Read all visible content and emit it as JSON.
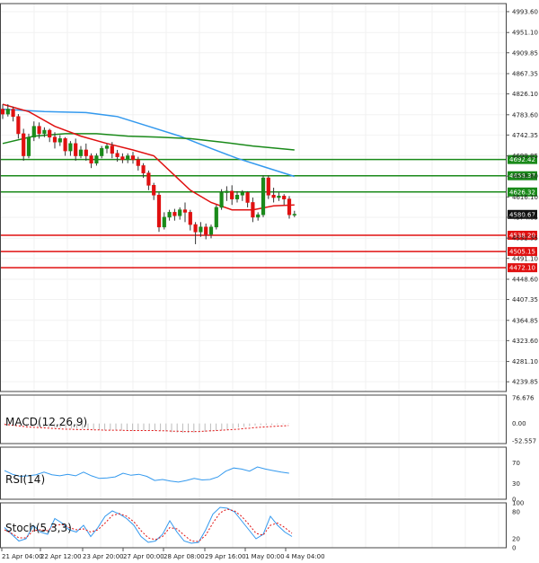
{
  "chart_data": [
    {
      "type": "candlestick",
      "ylim": [
        4220,
        5010
      ],
      "y_ticks": [
        "4993.60",
        "4951.10",
        "4909.85",
        "4867.35",
        "4826.10",
        "4783.60",
        "4742.35",
        "4699.85",
        "4658.60",
        "4616.10",
        "4574.85",
        "4532.35",
        "4491.10",
        "4448.60",
        "4407.35",
        "4364.85",
        "4323.60",
        "4281.10",
        "4239.85"
      ],
      "y_tick_values": [
        4993.6,
        4951.1,
        4909.85,
        4867.35,
        4826.1,
        4783.6,
        4742.35,
        4699.85,
        4658.6,
        4616.1,
        4574.85,
        4532.35,
        4491.1,
        4448.6,
        4407.35,
        4364.85,
        4323.6,
        4281.1,
        4239.85
      ],
      "x_labels": [
        "21 Apr 04:00",
        "22 Apr 12:00",
        "23 Apr 20:00",
        "27 Apr 00:00",
        "28 Apr 08:00",
        "29 Apr 16:00",
        "1 May 00:00",
        "4 May 04:00"
      ],
      "current_price": {
        "label": "4580.67",
        "value": 4580.67
      },
      "levels": [
        {
          "label": "4692.42",
          "value": 4692.42,
          "color": "#1a8a1a"
        },
        {
          "label": "4659.37",
          "value": 4659.37,
          "color": "#1a8a1a"
        },
        {
          "label": "4626.32",
          "value": 4626.32,
          "color": "#1a8a1a"
        },
        {
          "label": "4538.20",
          "value": 4538.2,
          "color": "#e01010"
        },
        {
          "label": "4505.15",
          "value": 4505.15,
          "color": "#e01010"
        },
        {
          "label": "4472.10",
          "value": 4472.1,
          "color": "#e01010"
        }
      ],
      "candles": [
        {
          "o": 4795,
          "h": 4805,
          "c": 4785,
          "l": 4775
        },
        {
          "o": 4785,
          "h": 4805,
          "c": 4795,
          "l": 4780
        },
        {
          "o": 4795,
          "h": 4800,
          "c": 4780,
          "l": 4770
        },
        {
          "o": 4780,
          "h": 4785,
          "c": 4745,
          "l": 4735
        },
        {
          "o": 4745,
          "h": 4755,
          "c": 4700,
          "l": 4690
        },
        {
          "o": 4700,
          "h": 4745,
          "c": 4738,
          "l": 4695
        },
        {
          "o": 4738,
          "h": 4770,
          "c": 4760,
          "l": 4730
        },
        {
          "o": 4760,
          "h": 4768,
          "c": 4745,
          "l": 4735
        },
        {
          "o": 4745,
          "h": 4758,
          "c": 4752,
          "l": 4738
        },
        {
          "o": 4752,
          "h": 4755,
          "c": 4738,
          "l": 4728
        },
        {
          "o": 4738,
          "h": 4748,
          "c": 4728,
          "l": 4715
        },
        {
          "o": 4728,
          "h": 4742,
          "c": 4735,
          "l": 4720
        },
        {
          "o": 4735,
          "h": 4738,
          "c": 4710,
          "l": 4700
        },
        {
          "o": 4710,
          "h": 4730,
          "c": 4725,
          "l": 4700
        },
        {
          "o": 4725,
          "h": 4735,
          "c": 4700,
          "l": 4690
        },
        {
          "o": 4700,
          "h": 4720,
          "c": 4712,
          "l": 4695
        },
        {
          "o": 4712,
          "h": 4725,
          "c": 4700,
          "l": 4690
        },
        {
          "o": 4700,
          "h": 4705,
          "c": 4685,
          "l": 4675
        },
        {
          "o": 4685,
          "h": 4705,
          "c": 4700,
          "l": 4680
        },
        {
          "o": 4700,
          "h": 4720,
          "c": 4715,
          "l": 4695
        },
        {
          "o": 4715,
          "h": 4725,
          "c": 4720,
          "l": 4705
        },
        {
          "o": 4720,
          "h": 4728,
          "c": 4705,
          "l": 4695
        },
        {
          "o": 4705,
          "h": 4712,
          "c": 4698,
          "l": 4688
        },
        {
          "o": 4698,
          "h": 4705,
          "c": 4692,
          "l": 4685
        },
        {
          "o": 4692,
          "h": 4705,
          "c": 4700,
          "l": 4685
        },
        {
          "o": 4700,
          "h": 4708,
          "c": 4692,
          "l": 4684
        },
        {
          "o": 4692,
          "h": 4698,
          "c": 4680,
          "l": 4670
        },
        {
          "o": 4680,
          "h": 4685,
          "c": 4665,
          "l": 4655
        },
        {
          "o": 4665,
          "h": 4670,
          "c": 4640,
          "l": 4630
        },
        {
          "o": 4640,
          "h": 4645,
          "c": 4620,
          "l": 4610
        },
        {
          "o": 4620,
          "h": 4625,
          "c": 4555,
          "l": 4545
        },
        {
          "o": 4555,
          "h": 4585,
          "c": 4575,
          "l": 4550
        },
        {
          "o": 4575,
          "h": 4590,
          "c": 4585,
          "l": 4568
        },
        {
          "o": 4585,
          "h": 4592,
          "c": 4578,
          "l": 4568
        },
        {
          "o": 4578,
          "h": 4595,
          "c": 4590,
          "l": 4570
        },
        {
          "o": 4590,
          "h": 4605,
          "c": 4585,
          "l": 4565
        },
        {
          "o": 4585,
          "h": 4590,
          "c": 4560,
          "l": 4548
        },
        {
          "o": 4560,
          "h": 4565,
          "c": 4545,
          "l": 4520
        },
        {
          "o": 4545,
          "h": 4565,
          "c": 4555,
          "l": 4535
        },
        {
          "o": 4555,
          "h": 4562,
          "c": 4540,
          "l": 4530
        },
        {
          "o": 4540,
          "h": 4560,
          "c": 4555,
          "l": 4532
        },
        {
          "o": 4555,
          "h": 4600,
          "c": 4595,
          "l": 4550
        },
        {
          "o": 4595,
          "h": 4632,
          "c": 4625,
          "l": 4590
        },
        {
          "o": 4625,
          "h": 4638,
          "c": 4628,
          "l": 4608
        },
        {
          "o": 4628,
          "h": 4640,
          "c": 4612,
          "l": 4600
        },
        {
          "o": 4612,
          "h": 4628,
          "c": 4620,
          "l": 4605
        },
        {
          "o": 4620,
          "h": 4630,
          "c": 4625,
          "l": 4608
        },
        {
          "o": 4625,
          "h": 4628,
          "c": 4605,
          "l": 4595
        },
        {
          "o": 4605,
          "h": 4615,
          "c": 4575,
          "l": 4565
        },
        {
          "o": 4575,
          "h": 4585,
          "c": 4580,
          "l": 4568
        },
        {
          "o": 4580,
          "h": 4660,
          "c": 4655,
          "l": 4575
        },
        {
          "o": 4655,
          "h": 4660,
          "c": 4620,
          "l": 4612
        },
        {
          "o": 4620,
          "h": 4635,
          "c": 4615,
          "l": 4605
        },
        {
          "o": 4615,
          "h": 4625,
          "c": 4618,
          "l": 4608
        },
        {
          "o": 4618,
          "h": 4622,
          "c": 4612,
          "l": 4600
        },
        {
          "o": 4612,
          "h": 4618,
          "c": 4580,
          "l": 4572
        },
        {
          "o": 4580,
          "h": 4588,
          "c": 4581,
          "l": 4575
        }
      ],
      "series": [
        {
          "color": "#3399ee",
          "values": [
            [
              0,
              4795
            ],
            [
              8,
              4790
            ],
            [
              16,
              4788
            ],
            [
              22,
              4780
            ],
            [
              28,
              4760
            ],
            [
              34,
              4740
            ],
            [
              40,
              4715
            ],
            [
              45,
              4695
            ],
            [
              50,
              4678
            ],
            [
              56,
              4658
            ]
          ]
        },
        {
          "color": "#1a8a1a",
          "values": [
            [
              0,
              4725
            ],
            [
              6,
              4740
            ],
            [
              12,
              4745
            ],
            [
              18,
              4745
            ],
            [
              24,
              4740
            ],
            [
              30,
              4738
            ],
            [
              36,
              4735
            ],
            [
              42,
              4728
            ],
            [
              48,
              4720
            ],
            [
              56,
              4712
            ]
          ]
        },
        {
          "color": "#e01010",
          "values": [
            [
              0,
              4805
            ],
            [
              5,
              4790
            ],
            [
              10,
              4760
            ],
            [
              15,
              4740
            ],
            [
              20,
              4725
            ],
            [
              25,
              4712
            ],
            [
              29,
              4700
            ],
            [
              32,
              4670
            ],
            [
              36,
              4630
            ],
            [
              40,
              4605
            ],
            [
              44,
              4590
            ],
            [
              48,
              4590
            ],
            [
              52,
              4598
            ],
            [
              56,
              4600
            ]
          ]
        }
      ]
    },
    {
      "type": "bar",
      "title": "MACD(12,26,9)",
      "ylim": [
        -60,
        85
      ],
      "y_ticks": [
        "76.676",
        "0.00",
        "-52.557"
      ],
      "y_tick_values": [
        76.676,
        0,
        -52.557
      ],
      "series": [
        {
          "values": [
            -2,
            -3,
            -4,
            -6,
            -8,
            -9,
            -9,
            -10,
            -11,
            -12,
            -13,
            -14,
            -15,
            -16,
            -16,
            -17,
            -18,
            -19,
            -20,
            -20,
            -20,
            -21,
            -22,
            -22,
            -21,
            -20,
            -20,
            -21,
            -22,
            -24,
            -26,
            -27,
            -28,
            -28,
            -27,
            -26,
            -25,
            -24,
            -22,
            -20,
            -18,
            -15,
            -12,
            -10,
            -8,
            -6,
            -5,
            -4,
            -4,
            -3,
            -2,
            -1
          ]
        },
        {
          "color": "#e01010",
          "values": [
            -3,
            -4,
            -6,
            -8,
            -10,
            -11,
            -12,
            -13,
            -14,
            -15,
            -16,
            -17,
            -17,
            -18,
            -18,
            -18,
            -19,
            -19,
            -20,
            -20,
            -20,
            -20,
            -21,
            -21,
            -21,
            -21,
            -21,
            -21,
            -22,
            -22,
            -23,
            -23,
            -24,
            -24,
            -24,
            -24,
            -23,
            -22,
            -21,
            -20,
            -19,
            -18,
            -17,
            -15,
            -14,
            -12,
            -11,
            -10,
            -9,
            -8,
            -7,
            -6
          ]
        }
      ]
    },
    {
      "type": "line",
      "title": "RSI(14)",
      "ylim": [
        0,
        100
      ],
      "y_ticks": [
        "70",
        "30",
        "0"
      ],
      "y_tick_values": [
        70,
        30,
        0
      ],
      "series": [
        {
          "color": "#3399ee",
          "values": [
            55,
            48,
            44,
            45,
            47,
            52,
            47,
            45,
            48,
            45,
            52,
            45,
            40,
            41,
            43,
            50,
            46,
            48,
            44,
            36,
            38,
            35,
            33,
            36,
            40,
            37,
            38,
            43,
            54,
            60,
            58,
            54,
            62,
            58,
            55,
            52,
            50
          ]
        }
      ]
    },
    {
      "type": "line",
      "title": "Stoch(5,3,3)",
      "ylim": [
        0,
        100
      ],
      "y_ticks": [
        "100",
        "80",
        "20",
        "0"
      ],
      "y_tick_values": [
        100,
        80,
        20,
        0
      ],
      "series": [
        {
          "color": "#3399ee",
          "values": [
            45,
            30,
            15,
            20,
            50,
            35,
            30,
            65,
            55,
            40,
            35,
            50,
            25,
            45,
            70,
            82,
            75,
            65,
            50,
            25,
            12,
            15,
            30,
            60,
            35,
            15,
            10,
            12,
            40,
            75,
            90,
            88,
            80,
            60,
            40,
            20,
            30,
            70,
            50,
            35,
            25
          ]
        },
        {
          "color": "#e01010",
          "values": [
            40,
            32,
            22,
            22,
            38,
            40,
            38,
            50,
            52,
            45,
            40,
            42,
            35,
            40,
            55,
            72,
            76,
            70,
            58,
            38,
            22,
            18,
            25,
            45,
            42,
            28,
            15,
            14,
            28,
            55,
            78,
            86,
            82,
            70,
            52,
            32,
            28,
            50,
            55,
            45,
            32
          ]
        }
      ]
    }
  ]
}
